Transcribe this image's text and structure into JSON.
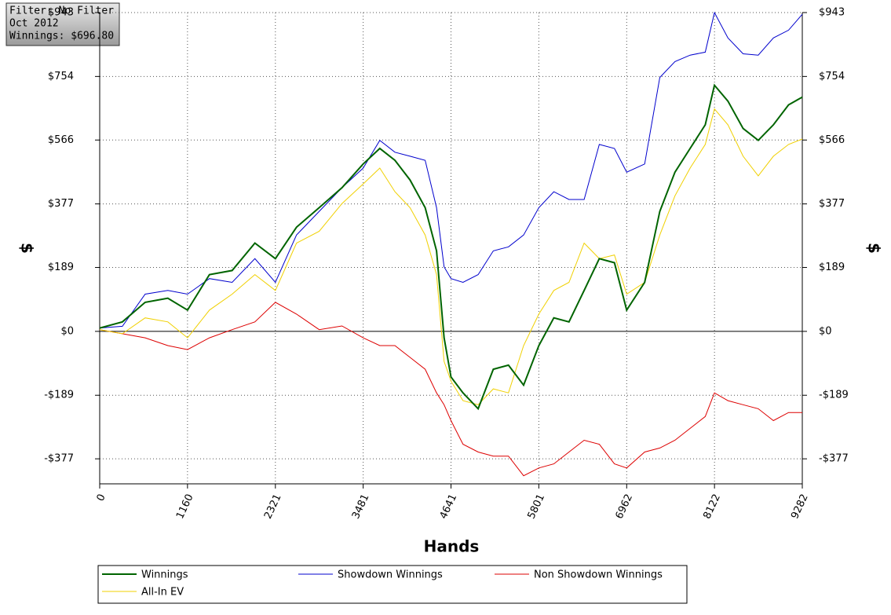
{
  "chart_data": {
    "type": "line",
    "annotations": [
      "Filter: No Filter",
      "Oct 2012",
      "Winnings: $696.80"
    ],
    "xlabel": "Hands",
    "ylabel": "$",
    "xlim": [
      0,
      9282
    ],
    "xticks": [
      0,
      1160,
      2321,
      3481,
      4641,
      5801,
      6962,
      8122,
      9282
    ],
    "ylim": [
      -451,
      943
    ],
    "yticks": [
      {
        "value": -377,
        "label": "-$377"
      },
      {
        "value": -189,
        "label": "-$189"
      },
      {
        "value": 0,
        "label": "$0"
      },
      {
        "value": 189,
        "label": "$189"
      },
      {
        "value": 377,
        "label": "$377"
      },
      {
        "value": 566,
        "label": "$566"
      },
      {
        "value": 754,
        "label": "$754"
      },
      {
        "value": 943,
        "label": "$943"
      }
    ],
    "grid": true,
    "legend": "bottom",
    "x": [
      0,
      300,
      600,
      900,
      1160,
      1450,
      1750,
      2050,
      2321,
      2600,
      2900,
      3200,
      3481,
      3700,
      3900,
      4100,
      4300,
      4450,
      4550,
      4641,
      4800,
      5000,
      5200,
      5400,
      5600,
      5801,
      6000,
      6200,
      6400,
      6600,
      6800,
      6962,
      7200,
      7400,
      7600,
      7800,
      8000,
      8122,
      8300,
      8500,
      8700,
      8900,
      9100,
      9282
    ],
    "series": [
      {
        "name": "Winnings",
        "color": "#006400",
        "width": 2,
        "values": [
          10,
          28,
          86,
          98,
          63,
          168,
          180,
          261,
          215,
          308,
          366,
          425,
          495,
          541,
          506,
          448,
          366,
          238,
          -19,
          -135,
          -182,
          -229,
          -112,
          -100,
          -159,
          -42,
          40,
          28,
          121,
          215,
          203,
          63,
          145,
          355,
          471,
          541,
          611,
          728,
          681,
          600,
          565,
          611,
          670,
          693
        ]
      },
      {
        "name": "Showdown Winnings",
        "color": "#0000cd",
        "width": 1,
        "values": [
          10,
          15,
          110,
          121,
          110,
          156,
          145,
          215,
          145,
          285,
          355,
          425,
          483,
          565,
          530,
          518,
          506,
          366,
          191,
          156,
          145,
          168,
          238,
          250,
          285,
          366,
          413,
          390,
          390,
          553,
          541,
          471,
          495,
          751,
          798,
          817,
          826,
          943,
          868,
          821,
          817,
          868,
          891,
          938
        ]
      },
      {
        "name": "Non Showdown Winnings",
        "color": "#dd0000",
        "width": 1,
        "values": [
          5,
          -7,
          -19,
          -42,
          -54,
          -19,
          5,
          28,
          86,
          51,
          5,
          16,
          -19,
          -42,
          -42,
          -77,
          -112,
          -182,
          -217,
          -264,
          -334,
          -357,
          -369,
          -369,
          -427,
          -404,
          -392,
          -357,
          -322,
          -334,
          -392,
          -404,
          -357,
          -345,
          -322,
          -287,
          -252,
          -182,
          -205,
          -217,
          -229,
          -264,
          -240,
          -240
        ]
      },
      {
        "name": "All-In EV",
        "color": "#f0d000",
        "width": 1,
        "values": [
          5,
          -7,
          40,
          28,
          -19,
          63,
          110,
          168,
          121,
          261,
          296,
          378,
          436,
          483,
          413,
          366,
          285,
          168,
          -89,
          -147,
          -205,
          -217,
          -170,
          -182,
          -42,
          51,
          121,
          145,
          261,
          215,
          226,
          110,
          145,
          285,
          401,
          483,
          553,
          658,
          611,
          518,
          460,
          518,
          553,
          569
        ]
      }
    ]
  }
}
